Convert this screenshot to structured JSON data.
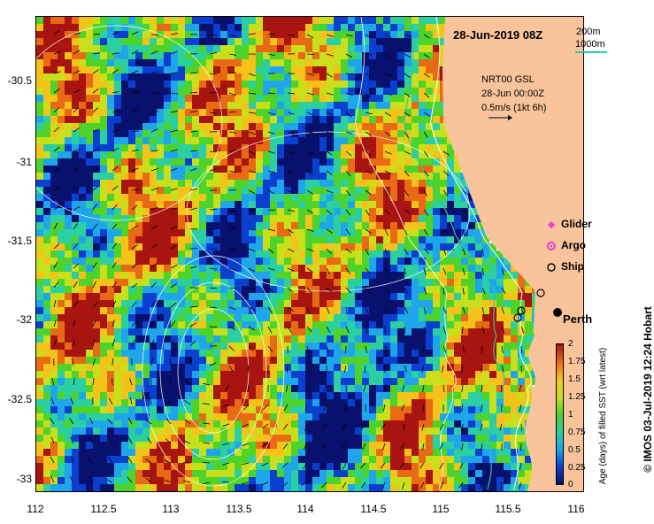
{
  "map": {
    "date_title": "28-Jun-2019 08Z",
    "depth_contours": {
      "shallow": "200m",
      "deep": "1000m",
      "deep_color": "#2ec4a8"
    },
    "model": {
      "name": "NRT00 GSL",
      "time": "28-Jun 00:00Z",
      "scale": "0.5m/s (1kt 6h)"
    },
    "legend": [
      {
        "label": "Glider",
        "symbol": "diamond-icon",
        "color": "#e83fd0"
      },
      {
        "label": "Argo",
        "symbol": "argo-circle-icon",
        "color": "#e83fd0"
      },
      {
        "label": "Ship",
        "symbol": "ship-circle-icon",
        "color": "#000000"
      }
    ],
    "city": "Perth",
    "credit": "© IMOS 03-Jul-2019 12:24 Hobart",
    "land_color": "#f9c49b",
    "axes": {
      "x_ticks": [
        "112",
        "112.5",
        "113",
        "113.5",
        "114",
        "114.5",
        "115",
        "115.5",
        "116"
      ],
      "x_range": [
        112,
        116.05
      ],
      "y_ticks": [
        "-30.5",
        "-31",
        "-31.5",
        "-32",
        "-32.5",
        "-33"
      ],
      "y_range": [
        -33.1,
        -30.1
      ]
    },
    "colorbar": {
      "title": "Age (days) of filled SST (wrt latest)",
      "ticks": [
        "2",
        "1.75",
        "1.5",
        "1.25",
        "1",
        "0.75",
        "0.5",
        "0.25",
        "0"
      ],
      "range": [
        0,
        2
      ],
      "colors": [
        "#08126e",
        "#0b3fd0",
        "#1fa6ea",
        "#2bcfa0",
        "#4ed32a",
        "#c8e01c",
        "#f5c21a",
        "#e86a14",
        "#a8140f"
      ]
    }
  }
}
